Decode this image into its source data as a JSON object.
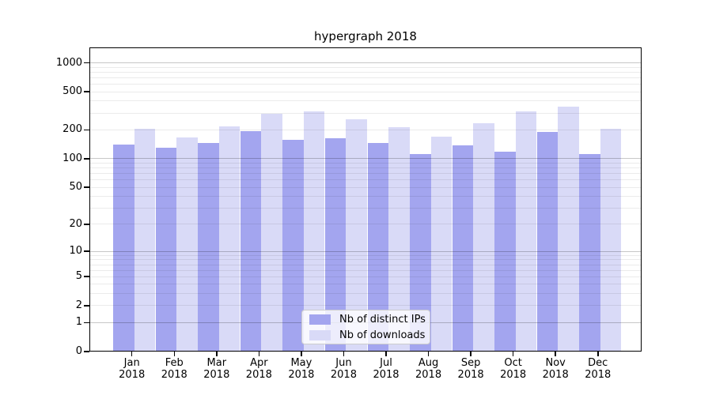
{
  "chart_data": {
    "type": "bar",
    "title": "hypergraph 2018",
    "categories": [
      "Jan",
      "Feb",
      "Mar",
      "Apr",
      "May",
      "Jun",
      "Jul",
      "Aug",
      "Sep",
      "Oct",
      "Nov",
      "Dec"
    ],
    "category_year": "2018",
    "series": [
      {
        "name": "Nb of distinct IPs",
        "color": "#a3a5ef",
        "values": [
          140,
          131,
          147,
          195,
          159,
          164,
          146,
          112,
          137,
          118,
          190,
          111
        ]
      },
      {
        "name": "Nb of downloads",
        "color": "#d9daf7",
        "values": [
          205,
          166,
          218,
          295,
          314,
          258,
          214,
          171,
          233,
          313,
          352,
          207
        ]
      }
    ],
    "xlabel": "",
    "ylabel": "",
    "yscale": "log1p",
    "yticks": [
      0,
      1,
      2,
      5,
      10,
      20,
      50,
      100,
      200,
      500,
      1000
    ],
    "ylim": [
      0,
      1450
    ],
    "grid": "horizontal major and minor gridlines",
    "legend_position": "lower center"
  }
}
